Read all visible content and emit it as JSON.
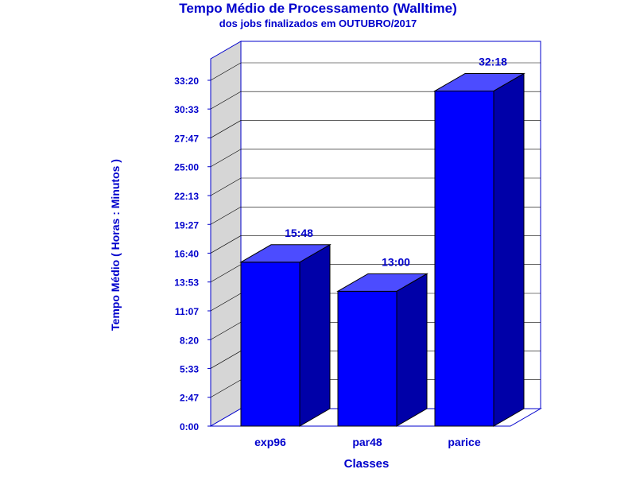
{
  "chart_data": {
    "type": "bar",
    "title": "Tempo Médio de Processamento (Walltime)",
    "subtitle": "dos jobs finalizados em OUTUBRO/2017",
    "xlabel": "Classes",
    "ylabel": "Tempo Médio ( Horas : Minutos )",
    "categories": [
      "exp96",
      "par48",
      "parice"
    ],
    "values": [
      15.8,
      13.0,
      32.3
    ],
    "value_labels": [
      "15:48",
      "13:00",
      "32:18"
    ],
    "yticks": [
      0,
      2.78,
      5.56,
      8.33,
      11.11,
      13.89,
      16.67,
      19.44,
      22.22,
      25.0,
      27.78,
      30.56,
      33.33
    ],
    "ytick_labels": [
      "0:00",
      "2:47",
      "5:33",
      "8:20",
      "11:07",
      "13:53",
      "16:40",
      "19:27",
      "22:13",
      "25:00",
      "27:47",
      "30:33",
      "33:20"
    ],
    "ylim": [
      0,
      33.33
    ],
    "grid": true,
    "colors": {
      "text": "#0000cc",
      "bar_front": "#0000ff",
      "bar_top": "#4c4cff",
      "bar_side": "#0000a8",
      "wall": "#d6d6d6",
      "frame": "#0000cc",
      "grid": "#000000"
    }
  }
}
